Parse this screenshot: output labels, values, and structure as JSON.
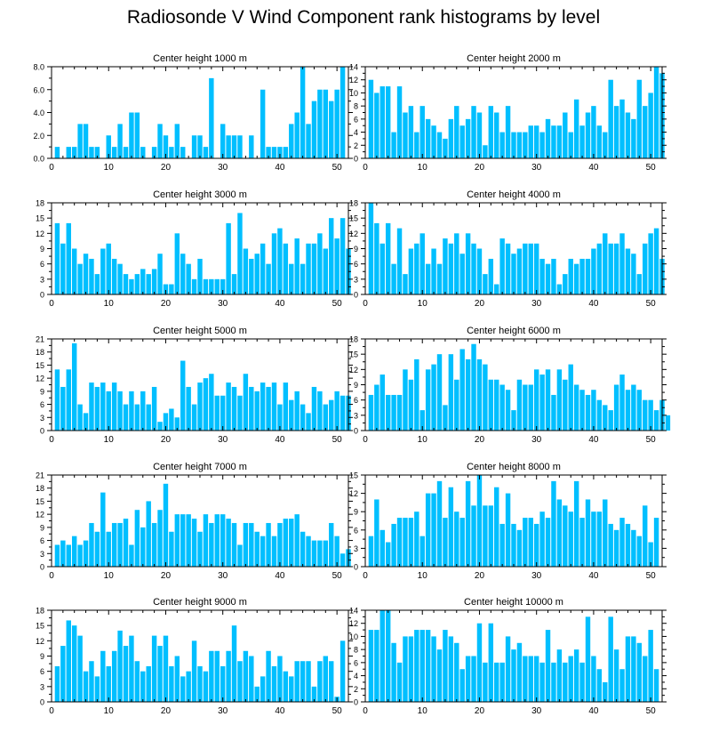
{
  "figure": {
    "title": "Radiosonde V Wind Component rank histograms by level"
  },
  "colors": {
    "bar": "#00bfff",
    "axis": "#000000",
    "background": "#ffffff"
  },
  "chart_data": [
    {
      "type": "bar",
      "title": "Center height 1000 m",
      "xlim": [
        0,
        52
      ],
      "ylim": [
        0,
        8
      ],
      "xticks": [
        0,
        10,
        20,
        30,
        40,
        50
      ],
      "yticks": [
        0,
        2,
        4,
        6,
        8
      ],
      "ytick_labels": [
        "0.0",
        "2.0",
        "4.0",
        "6.0",
        "8.0"
      ],
      "values": [
        1,
        0,
        1,
        1,
        3,
        3,
        1,
        1,
        0,
        2,
        1,
        3,
        1,
        4,
        4,
        1,
        0,
        1,
        3,
        2,
        1,
        3,
        1,
        0,
        2,
        2,
        1,
        7,
        0,
        3,
        2,
        2,
        2,
        0,
        2,
        0,
        6,
        1,
        1,
        1,
        1,
        3,
        4,
        8,
        3,
        5,
        6,
        6,
        5,
        6,
        8
      ]
    },
    {
      "type": "bar",
      "title": "Center height 2000 m",
      "xlim": [
        0,
        52
      ],
      "ylim": [
        0,
        14
      ],
      "xticks": [
        0,
        10,
        20,
        30,
        40,
        50
      ],
      "yticks": [
        0,
        2,
        4,
        6,
        8,
        10,
        12,
        14
      ],
      "ytick_labels": [
        "0",
        "2",
        "4",
        "6",
        "8",
        "10",
        "12",
        "14"
      ],
      "values": [
        12,
        10,
        11,
        11,
        4,
        11,
        7,
        8,
        4,
        8,
        6,
        5,
        4,
        3,
        6,
        8,
        5,
        6,
        8,
        7,
        2,
        8,
        7,
        4,
        8,
        4,
        4,
        4,
        5,
        5,
        4,
        6,
        5,
        5,
        7,
        4,
        9,
        5,
        7,
        8,
        5,
        4,
        12,
        8,
        9,
        7,
        6,
        12,
        8,
        10,
        14,
        13
      ]
    },
    {
      "type": "bar",
      "title": "Center height 3000 m",
      "xlim": [
        0,
        52
      ],
      "ylim": [
        0,
        18
      ],
      "xticks": [
        0,
        10,
        20,
        30,
        40,
        50
      ],
      "yticks": [
        0,
        3,
        6,
        9,
        12,
        15,
        18
      ],
      "ytick_labels": [
        "0",
        "3",
        "6",
        "9",
        "12",
        "15",
        "18"
      ],
      "values": [
        14,
        10,
        14,
        9,
        6,
        8,
        7,
        4,
        9,
        10,
        7,
        6,
        4,
        3,
        4,
        5,
        4,
        5,
        8,
        2,
        2,
        12,
        8,
        6,
        3,
        7,
        3,
        3,
        3,
        3,
        14,
        4,
        16,
        9,
        7,
        8,
        10,
        6,
        12,
        13,
        10,
        6,
        11,
        6,
        10,
        10,
        12,
        9,
        15,
        11,
        15,
        9
      ]
    },
    {
      "type": "bar",
      "title": "Center height 4000 m",
      "xlim": [
        0,
        52
      ],
      "ylim": [
        0,
        18
      ],
      "xticks": [
        0,
        10,
        20,
        30,
        40,
        50
      ],
      "yticks": [
        0,
        3,
        6,
        9,
        12,
        15,
        18
      ],
      "ytick_labels": [
        "0",
        "3",
        "6",
        "9",
        "12",
        "15",
        "18"
      ],
      "values": [
        18,
        14,
        10,
        14,
        6,
        13,
        4,
        9,
        10,
        12,
        6,
        9,
        6,
        11,
        10,
        12,
        8,
        12,
        10,
        9,
        4,
        7,
        2,
        11,
        10,
        8,
        9,
        10,
        10,
        10,
        7,
        6,
        7,
        2,
        4,
        7,
        6,
        7,
        7,
        9,
        10,
        12,
        10,
        10,
        12,
        9,
        8,
        4,
        10,
        12,
        13,
        7
      ]
    },
    {
      "type": "bar",
      "title": "Center height 5000 m",
      "xlim": [
        0,
        52
      ],
      "ylim": [
        0,
        21
      ],
      "xticks": [
        0,
        10,
        20,
        30,
        40,
        50
      ],
      "yticks": [
        0,
        3,
        6,
        9,
        12,
        15,
        18,
        21
      ],
      "ytick_labels": [
        "0",
        "3",
        "6",
        "9",
        "12",
        "15",
        "18",
        "21"
      ],
      "values": [
        14,
        10,
        14,
        20,
        6,
        4,
        11,
        10,
        11,
        9,
        11,
        9,
        6,
        9,
        6,
        9,
        6,
        10,
        2,
        4,
        5,
        3,
        16,
        10,
        6,
        11,
        12,
        13,
        8,
        8,
        11,
        10,
        8,
        13,
        10,
        9,
        11,
        10,
        11,
        6,
        11,
        7,
        9,
        6,
        4,
        10,
        9,
        6,
        7,
        9,
        8,
        8
      ]
    },
    {
      "type": "bar",
      "title": "Center height 6000 m",
      "xlim": [
        0,
        52
      ],
      "ylim": [
        0,
        18
      ],
      "xticks": [
        0,
        10,
        20,
        30,
        40,
        50
      ],
      "yticks": [
        0,
        3,
        6,
        9,
        12,
        15,
        18
      ],
      "ytick_labels": [
        "0",
        "3",
        "6",
        "9",
        "12",
        "15",
        "18"
      ],
      "values": [
        7,
        9,
        11,
        7,
        7,
        7,
        12,
        10,
        14,
        4,
        12,
        13,
        15,
        5,
        15,
        10,
        16,
        14,
        17,
        14,
        13,
        10,
        10,
        9,
        8,
        4,
        10,
        9,
        9,
        12,
        11,
        12,
        7,
        12,
        10,
        13,
        9,
        8,
        7,
        8,
        6,
        5,
        4,
        9,
        11,
        8,
        9,
        8,
        6,
        6,
        4,
        6,
        3
      ]
    },
    {
      "type": "bar",
      "title": "Center height 7000 m",
      "xlim": [
        0,
        52
      ],
      "ylim": [
        0,
        21
      ],
      "xticks": [
        0,
        10,
        20,
        30,
        40,
        50
      ],
      "yticks": [
        0,
        3,
        6,
        9,
        12,
        15,
        18,
        21
      ],
      "ytick_labels": [
        "0",
        "3",
        "6",
        "9",
        "12",
        "15",
        "18",
        "21"
      ],
      "values": [
        5,
        6,
        5,
        7,
        5,
        6,
        10,
        8,
        17,
        8,
        10,
        10,
        11,
        5,
        13,
        9,
        15,
        10,
        13,
        19,
        8,
        12,
        12,
        12,
        11,
        8,
        12,
        10,
        12,
        12,
        11,
        10,
        5,
        10,
        10,
        8,
        7,
        10,
        7,
        10,
        11,
        11,
        12,
        8,
        7,
        6,
        6,
        6,
        10,
        7,
        3,
        4
      ]
    },
    {
      "type": "bar",
      "title": "Center height 8000 m",
      "xlim": [
        0,
        52
      ],
      "ylim": [
        0,
        15
      ],
      "xticks": [
        0,
        10,
        20,
        30,
        40,
        50
      ],
      "yticks": [
        0,
        3,
        6,
        9,
        12,
        15
      ],
      "ytick_labels": [
        "0",
        "3",
        "6",
        "9",
        "12",
        "15"
      ],
      "values": [
        5,
        11,
        6,
        4,
        7,
        8,
        8,
        8,
        9,
        5,
        12,
        12,
        14,
        8,
        13,
        9,
        8,
        14,
        10,
        15,
        10,
        10,
        13,
        7,
        12,
        7,
        6,
        8,
        8,
        7,
        9,
        8,
        14,
        11,
        10,
        9,
        14,
        8,
        11,
        9,
        9,
        11,
        7,
        6,
        8,
        7,
        6,
        5,
        10,
        4,
        8
      ]
    },
    {
      "type": "bar",
      "title": "Center height 9000 m",
      "xlim": [
        0,
        52
      ],
      "ylim": [
        0,
        18
      ],
      "xticks": [
        0,
        10,
        20,
        30,
        40,
        50
      ],
      "yticks": [
        0,
        3,
        6,
        9,
        12,
        15,
        18
      ],
      "ytick_labels": [
        "0",
        "3",
        "6",
        "9",
        "12",
        "15",
        "18"
      ],
      "values": [
        7,
        11,
        16,
        15,
        13,
        6,
        8,
        5,
        10,
        7,
        10,
        14,
        11,
        13,
        8,
        6,
        7,
        13,
        11,
        13,
        7,
        9,
        5,
        6,
        12,
        7,
        6,
        10,
        10,
        7,
        10,
        15,
        8,
        10,
        9,
        3,
        5,
        10,
        7,
        9,
        6,
        5,
        8,
        8,
        8,
        3,
        8,
        9,
        8,
        1,
        12
      ]
    },
    {
      "type": "bar",
      "title": "Center height 10000 m",
      "xlim": [
        0,
        52
      ],
      "ylim": [
        0,
        14
      ],
      "xticks": [
        0,
        10,
        20,
        30,
        40,
        50
      ],
      "yticks": [
        0,
        2,
        4,
        6,
        8,
        10,
        12,
        14
      ],
      "ytick_labels": [
        "0",
        "2",
        "4",
        "6",
        "8",
        "10",
        "12",
        "14"
      ],
      "values": [
        11,
        11,
        14,
        14,
        9,
        6,
        10,
        10,
        11,
        11,
        11,
        10,
        8,
        11,
        10,
        9,
        5,
        7,
        7,
        12,
        6,
        12,
        6,
        6,
        10,
        8,
        9,
        7,
        7,
        7,
        6,
        11,
        6,
        8,
        6,
        7,
        8,
        6,
        13,
        7,
        5,
        3,
        13,
        8,
        5,
        10,
        10,
        9,
        7,
        11,
        5
      ]
    }
  ]
}
